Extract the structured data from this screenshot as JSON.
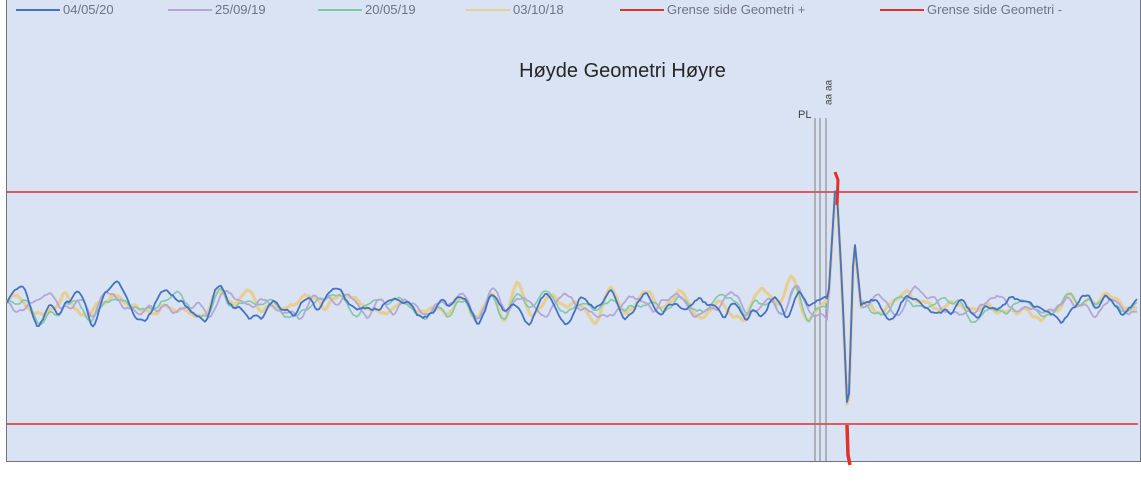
{
  "chart_data": {
    "type": "line",
    "title": "Høyde Geometri Høyre",
    "xlabel": "",
    "ylabel": "",
    "grid": false,
    "legend_position": "top",
    "series": [
      {
        "name": "04/05/20",
        "color": "#4472c4"
      },
      {
        "name": "25/09/19",
        "color": "#b4a7d6"
      },
      {
        "name": "20/05/19",
        "color": "#7fc8a9"
      },
      {
        "name": "03/10/18",
        "color": "#e6cf93"
      },
      {
        "name": "Grense side Geometri +",
        "color": "#e0312a"
      },
      {
        "name": "Grense side Geometri -",
        "color": "#e0312a"
      }
    ],
    "markers": [
      {
        "label": "PL"
      },
      {
        "label": "ɐɐ"
      },
      {
        "label": "ɐɐ"
      }
    ]
  }
}
